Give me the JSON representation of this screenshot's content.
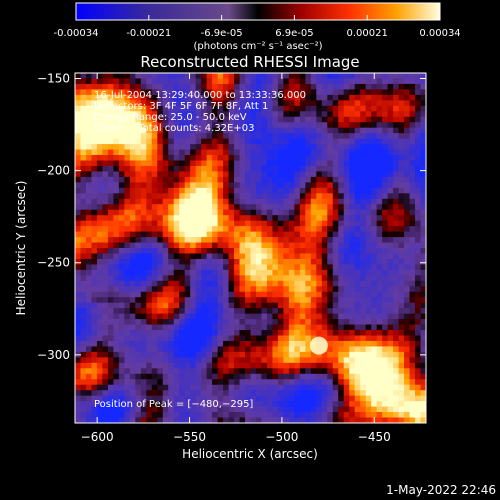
{
  "chart_data": {
    "type": "heatmap",
    "title": "Reconstructed RHESSI Image",
    "colorbar": {
      "tick_labels": [
        "-0.00034",
        "-0.00021",
        "-6.9e-05",
        "6.9e-05",
        "0.00021",
        "0.00034"
      ],
      "range": [
        -0.00034,
        0.00034
      ],
      "units_label": "(photons cm⁻² s⁻¹ asec⁻²)"
    },
    "xlabel": "Heliocentric X (arcsec)",
    "ylabel": "Heliocentric Y (arcsec)",
    "xlim": [
      -612,
      -422
    ],
    "ylim": [
      -337,
      -147
    ],
    "x_ticks": [
      -600,
      -550,
      -500,
      -450
    ],
    "x_tick_labels": [
      "−600",
      "−550",
      "−500",
      "−450"
    ],
    "y_ticks": [
      -150,
      -200,
      -250,
      -300
    ],
    "y_tick_labels": [
      "−150",
      "−200",
      "−250",
      "−300"
    ],
    "annotations": [
      "16-Jul-2004 13:29:40.000 to 13:33:36.000",
      "Detectors: 3F 4F 5F 6F 7F 8F, Att 1",
      "Energy Range: 25.0 - 50.0 keV",
      "Clean     Total counts: 4.32E+03"
    ],
    "peak_label": "Position of Peak = [−480,−295]",
    "peak": [
      -480,
      -295
    ]
  },
  "footer_timestamp": "1-May-2022 22:46"
}
